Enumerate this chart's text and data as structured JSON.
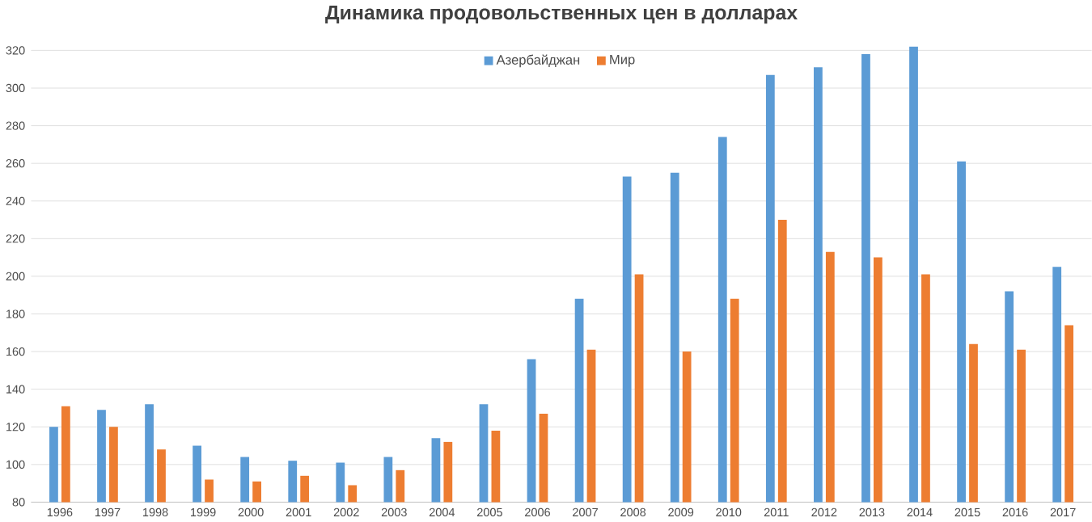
{
  "chart_data": {
    "type": "bar",
    "title": "Динамика продовольственных цен в долларах",
    "categories": [
      "1996",
      "1997",
      "1998",
      "1999",
      "2000",
      "2001",
      "2002",
      "2003",
      "2004",
      "2005",
      "2006",
      "2007",
      "2008",
      "2009",
      "2010",
      "2011",
      "2012",
      "2013",
      "2014",
      "2015",
      "2016",
      "2017"
    ],
    "series": [
      {
        "name": "Азербайджан",
        "color": "#5b9bd5",
        "values": [
          120,
          129,
          132,
          110,
          104,
          102,
          101,
          104,
          114,
          132,
          156,
          188,
          253,
          255,
          274,
          307,
          311,
          318,
          322,
          261,
          192,
          205
        ]
      },
      {
        "name": "Мир",
        "color": "#ed7d31",
        "values": [
          131,
          120,
          108,
          92,
          91,
          94,
          89,
          97,
          112,
          118,
          127,
          161,
          201,
          160,
          188,
          230,
          213,
          210,
          201,
          164,
          161,
          174
        ]
      }
    ],
    "ylim": [
      80,
      324
    ],
    "yticks": [
      80,
      100,
      120,
      140,
      160,
      180,
      200,
      220,
      240,
      260,
      280,
      300,
      320
    ],
    "grid": "y",
    "legend": "top"
  }
}
